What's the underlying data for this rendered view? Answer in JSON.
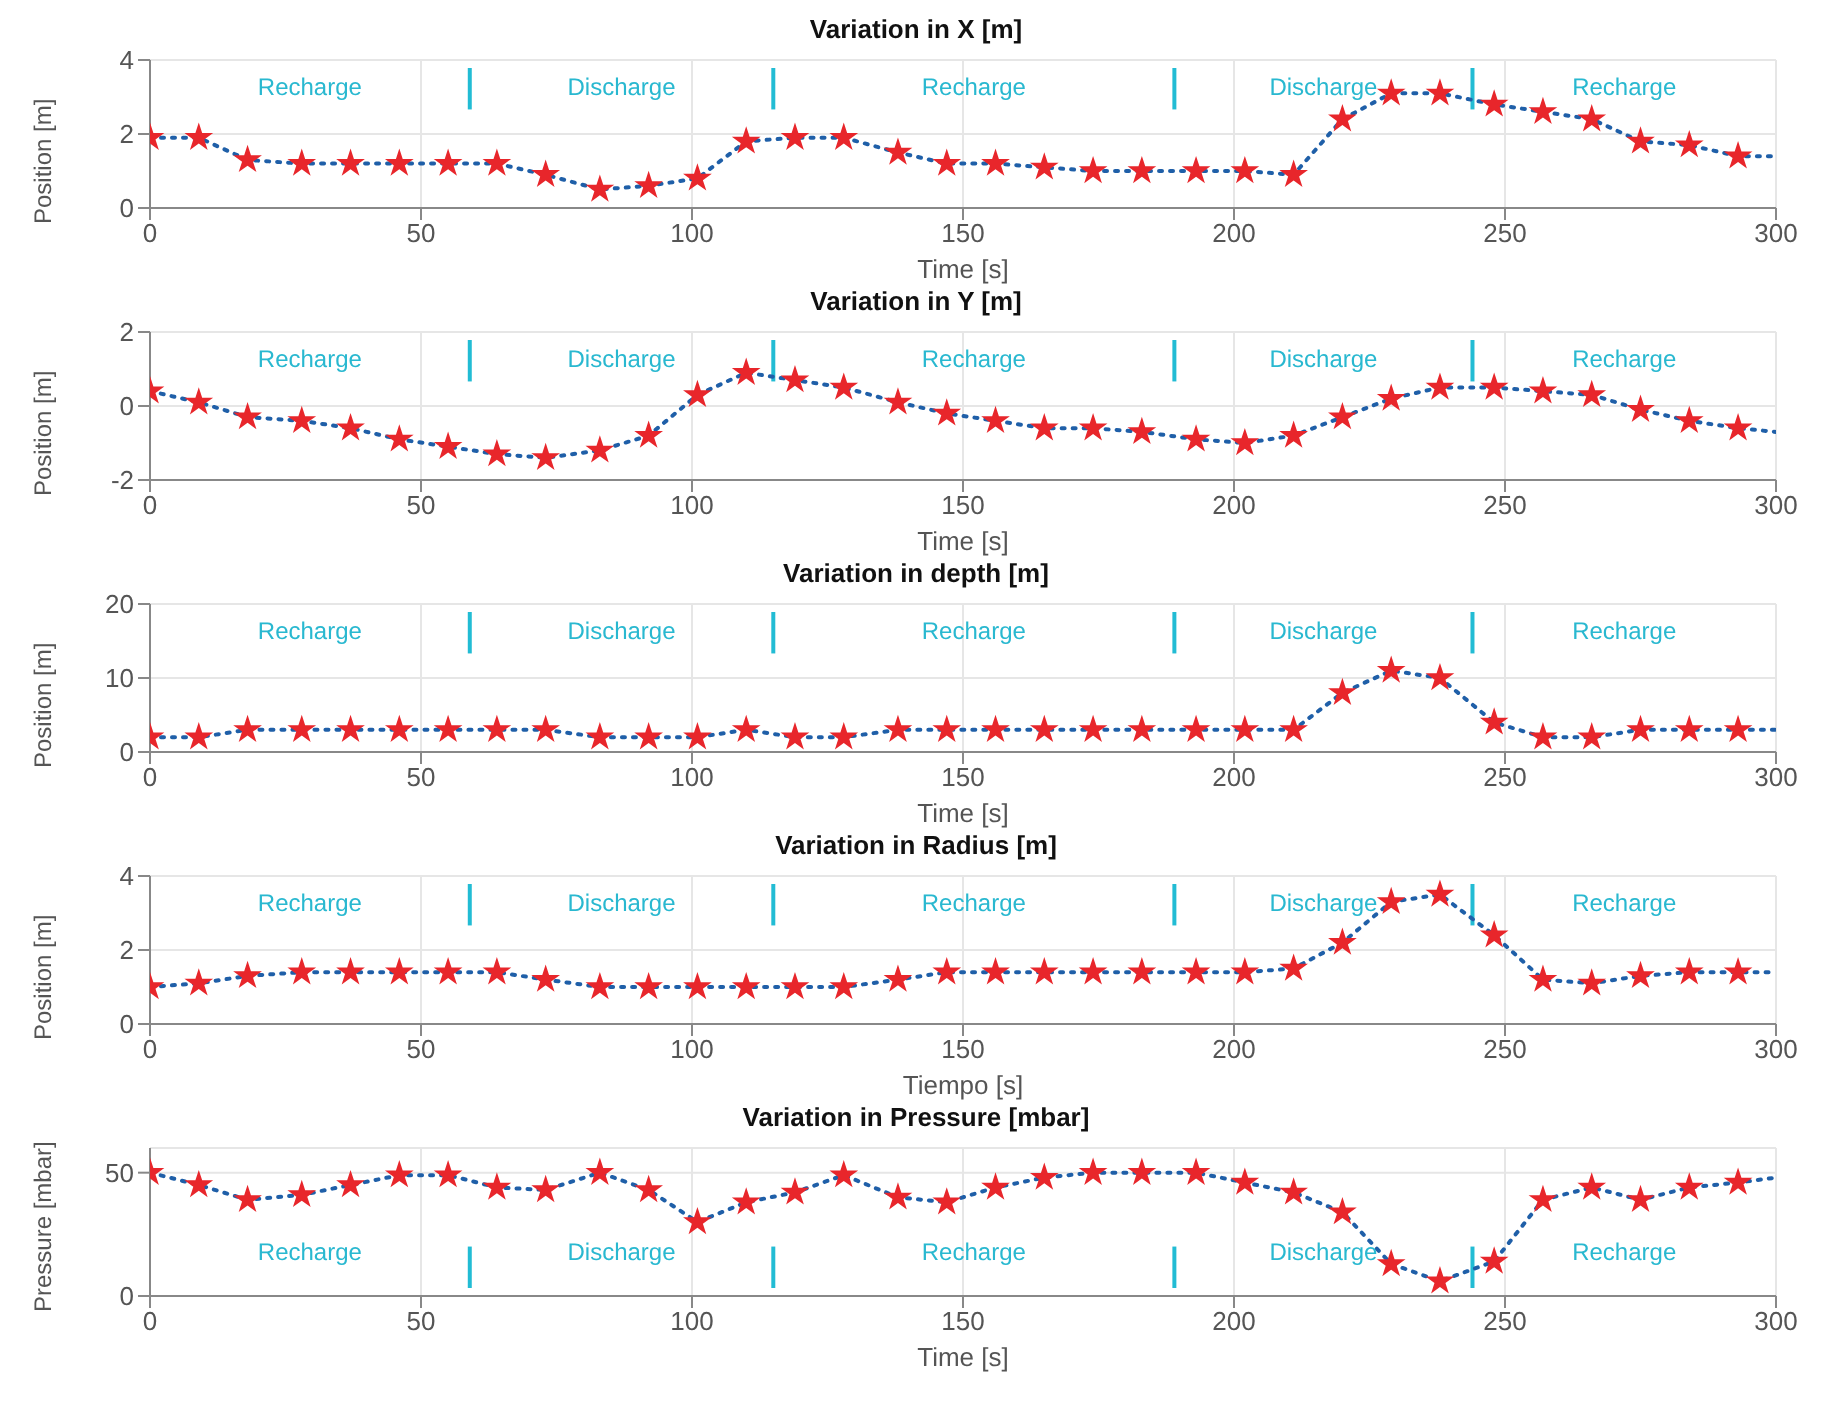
{
  "chart_data": [
    {
      "type": "line",
      "title": "Variation in X [m]",
      "xlabel": "Time [s]",
      "ylabel": "Position [m]",
      "xlim": [
        0,
        300
      ],
      "xticks": [
        0,
        50,
        100,
        150,
        200,
        250,
        300
      ],
      "ylim": [
        0,
        4
      ],
      "yticks": [
        0,
        2,
        4
      ],
      "grid": true,
      "series": [
        {
          "color": "#1f5fa8",
          "line_style": "dotted",
          "marker": "none",
          "x": [
            0,
            9,
            18,
            28,
            37,
            46,
            55,
            64,
            73,
            83,
            92,
            101,
            110,
            119,
            128,
            138,
            147,
            156,
            165,
            174,
            183,
            193,
            202,
            211,
            220,
            229,
            238,
            248,
            257,
            266,
            275,
            284,
            293,
            300
          ],
          "values": [
            1.9,
            1.9,
            1.3,
            1.2,
            1.2,
            1.2,
            1.2,
            1.2,
            0.9,
            0.5,
            0.6,
            0.8,
            1.8,
            1.9,
            1.9,
            1.5,
            1.2,
            1.2,
            1.1,
            1.0,
            1.0,
            1.0,
            1.0,
            0.9,
            2.4,
            3.1,
            3.1,
            2.8,
            2.6,
            2.4,
            1.8,
            1.7,
            1.4,
            1.4
          ]
        },
        {
          "type": "scatter",
          "color": "#e8262b",
          "marker": "star",
          "x": [
            0,
            9,
            18,
            28,
            37,
            46,
            55,
            64,
            73,
            83,
            92,
            101,
            110,
            119,
            128,
            138,
            147,
            156,
            165,
            174,
            183,
            193,
            202,
            211,
            220,
            229,
            238,
            248,
            257,
            266,
            275,
            284,
            293
          ],
          "values": [
            1.9,
            1.9,
            1.3,
            1.2,
            1.2,
            1.2,
            1.2,
            1.2,
            0.9,
            0.5,
            0.6,
            0.8,
            1.8,
            1.9,
            1.9,
            1.5,
            1.2,
            1.2,
            1.1,
            1.0,
            1.0,
            1.0,
            1.0,
            0.9,
            2.4,
            3.1,
            3.1,
            2.8,
            2.6,
            2.4,
            1.8,
            1.7,
            1.4
          ]
        }
      ],
      "ref_lines": [
        {
          "axis": "x",
          "value": 59,
          "color": "#22bcd4"
        },
        {
          "axis": "x",
          "value": 115,
          "color": "#22bcd4"
        },
        {
          "axis": "x",
          "value": 189,
          "color": "#22bcd4"
        },
        {
          "axis": "x",
          "value": 244,
          "color": "#22bcd4"
        }
      ],
      "annotations": [
        "Recharge",
        "Discharge",
        "Recharge",
        "Discharge",
        "Recharge"
      ]
    },
    {
      "type": "line",
      "title": "Variation in Y [m]",
      "xlabel": "Time [s]",
      "ylabel": "Position [m]",
      "xlim": [
        0,
        300
      ],
      "xticks": [
        0,
        50,
        100,
        150,
        200,
        250,
        300
      ],
      "ylim": [
        -2,
        2
      ],
      "yticks": [
        -2,
        0,
        2
      ],
      "grid": true,
      "series": [
        {
          "color": "#1f5fa8",
          "line_style": "dotted",
          "marker": "none",
          "x": [
            0,
            9,
            18,
            28,
            37,
            46,
            55,
            64,
            73,
            83,
            92,
            101,
            110,
            119,
            128,
            138,
            147,
            156,
            165,
            174,
            183,
            193,
            202,
            211,
            220,
            229,
            238,
            248,
            257,
            266,
            275,
            284,
            293,
            300
          ],
          "values": [
            0.4,
            0.1,
            -0.3,
            -0.4,
            -0.6,
            -0.9,
            -1.1,
            -1.3,
            -1.4,
            -1.2,
            -0.8,
            0.3,
            0.9,
            0.7,
            0.5,
            0.1,
            -0.2,
            -0.4,
            -0.6,
            -0.6,
            -0.7,
            -0.9,
            -1.0,
            -0.8,
            -0.3,
            0.2,
            0.5,
            0.5,
            0.4,
            0.3,
            -0.1,
            -0.4,
            -0.6,
            -0.7
          ]
        },
        {
          "type": "scatter",
          "color": "#e8262b",
          "marker": "star",
          "x": [
            0,
            9,
            18,
            28,
            37,
            46,
            55,
            64,
            73,
            83,
            92,
            101,
            110,
            119,
            128,
            138,
            147,
            156,
            165,
            174,
            183,
            193,
            202,
            211,
            220,
            229,
            238,
            248,
            257,
            266,
            275,
            284,
            293
          ],
          "values": [
            0.4,
            0.1,
            -0.3,
            -0.4,
            -0.6,
            -0.9,
            -1.1,
            -1.3,
            -1.4,
            -1.2,
            -0.8,
            0.3,
            0.9,
            0.7,
            0.5,
            0.1,
            -0.2,
            -0.4,
            -0.6,
            -0.6,
            -0.7,
            -0.9,
            -1.0,
            -0.8,
            -0.3,
            0.2,
            0.5,
            0.5,
            0.4,
            0.3,
            -0.1,
            -0.4,
            -0.6
          ]
        }
      ],
      "ref_lines": [
        {
          "axis": "x",
          "value": 59,
          "color": "#22bcd4"
        },
        {
          "axis": "x",
          "value": 115,
          "color": "#22bcd4"
        },
        {
          "axis": "x",
          "value": 189,
          "color": "#22bcd4"
        },
        {
          "axis": "x",
          "value": 244,
          "color": "#22bcd4"
        }
      ],
      "annotations": [
        "Recharge",
        "Discharge",
        "Recharge",
        "Discharge",
        "Recharge"
      ]
    },
    {
      "type": "line",
      "title": "Variation in depth [m]",
      "xlabel": "Time [s]",
      "ylabel": "Position [m]",
      "xlim": [
        0,
        300
      ],
      "xticks": [
        0,
        50,
        100,
        150,
        200,
        250,
        300
      ],
      "ylim": [
        0,
        20
      ],
      "yticks": [
        0,
        10,
        20
      ],
      "grid": true,
      "series": [
        {
          "color": "#1f5fa8",
          "line_style": "dotted",
          "marker": "none",
          "x": [
            0,
            9,
            18,
            28,
            37,
            46,
            55,
            64,
            73,
            83,
            92,
            101,
            110,
            119,
            128,
            138,
            147,
            156,
            165,
            174,
            183,
            193,
            202,
            211,
            220,
            229,
            238,
            248,
            257,
            266,
            275,
            284,
            293,
            300
          ],
          "values": [
            2,
            2,
            3,
            3,
            3,
            3,
            3,
            3,
            3,
            2,
            2,
            2,
            3,
            2,
            2,
            3,
            3,
            3,
            3,
            3,
            3,
            3,
            3,
            3,
            8,
            11,
            10,
            4,
            2,
            2,
            3,
            3,
            3,
            3
          ]
        },
        {
          "type": "scatter",
          "color": "#e8262b",
          "marker": "star",
          "x": [
            0,
            9,
            18,
            28,
            37,
            46,
            55,
            64,
            73,
            83,
            92,
            101,
            110,
            119,
            128,
            138,
            147,
            156,
            165,
            174,
            183,
            193,
            202,
            211,
            220,
            229,
            238,
            248,
            257,
            266,
            275,
            284,
            293
          ],
          "values": [
            2,
            2,
            3,
            3,
            3,
            3,
            3,
            3,
            3,
            2,
            2,
            2,
            3,
            2,
            2,
            3,
            3,
            3,
            3,
            3,
            3,
            3,
            3,
            3,
            8,
            11,
            10,
            4,
            2,
            2,
            3,
            3,
            3
          ]
        }
      ],
      "ref_lines": [
        {
          "axis": "x",
          "value": 59,
          "color": "#22bcd4"
        },
        {
          "axis": "x",
          "value": 115,
          "color": "#22bcd4"
        },
        {
          "axis": "x",
          "value": 189,
          "color": "#22bcd4"
        },
        {
          "axis": "x",
          "value": 244,
          "color": "#22bcd4"
        }
      ],
      "annotations": [
        "Recharge",
        "Discharge",
        "Recharge",
        "Discharge",
        "Recharge"
      ]
    },
    {
      "type": "line",
      "title": "Variation in Radius [m]",
      "xlabel": "Tiempo [s]",
      "ylabel": "Position [m]",
      "xlim": [
        0,
        300
      ],
      "xticks": [
        0,
        50,
        100,
        150,
        200,
        250,
        300
      ],
      "ylim": [
        0,
        4
      ],
      "yticks": [
        0,
        2,
        4
      ],
      "grid": true,
      "series": [
        {
          "color": "#1f5fa8",
          "line_style": "dotted",
          "marker": "none",
          "x": [
            0,
            9,
            18,
            28,
            37,
            46,
            55,
            64,
            73,
            83,
            92,
            101,
            110,
            119,
            128,
            138,
            147,
            156,
            165,
            174,
            183,
            193,
            202,
            211,
            220,
            229,
            238,
            248,
            257,
            266,
            275,
            284,
            293,
            300
          ],
          "values": [
            1.0,
            1.1,
            1.3,
            1.4,
            1.4,
            1.4,
            1.4,
            1.4,
            1.2,
            1.0,
            1.0,
            1.0,
            1.0,
            1.0,
            1.0,
            1.2,
            1.4,
            1.4,
            1.4,
            1.4,
            1.4,
            1.4,
            1.4,
            1.5,
            2.2,
            3.3,
            3.5,
            2.4,
            1.2,
            1.1,
            1.3,
            1.4,
            1.4,
            1.4
          ]
        },
        {
          "type": "scatter",
          "color": "#e8262b",
          "marker": "star",
          "x": [
            0,
            9,
            18,
            28,
            37,
            46,
            55,
            64,
            73,
            83,
            92,
            101,
            110,
            119,
            128,
            138,
            147,
            156,
            165,
            174,
            183,
            193,
            202,
            211,
            220,
            229,
            238,
            248,
            257,
            266,
            275,
            284,
            293
          ],
          "values": [
            1.0,
            1.1,
            1.3,
            1.4,
            1.4,
            1.4,
            1.4,
            1.4,
            1.2,
            1.0,
            1.0,
            1.0,
            1.0,
            1.0,
            1.0,
            1.2,
            1.4,
            1.4,
            1.4,
            1.4,
            1.4,
            1.4,
            1.4,
            1.5,
            2.2,
            3.3,
            3.5,
            2.4,
            1.2,
            1.1,
            1.3,
            1.4,
            1.4
          ]
        }
      ],
      "ref_lines": [
        {
          "axis": "x",
          "value": 59,
          "color": "#22bcd4"
        },
        {
          "axis": "x",
          "value": 115,
          "color": "#22bcd4"
        },
        {
          "axis": "x",
          "value": 189,
          "color": "#22bcd4"
        },
        {
          "axis": "x",
          "value": 244,
          "color": "#22bcd4"
        }
      ],
      "annotations": [
        "Recharge",
        "Discharge",
        "Recharge",
        "Discharge",
        "Recharge"
      ]
    },
    {
      "type": "line",
      "title": "Variation in Pressure [mbar]",
      "xlabel": "Time [s]",
      "ylabel": "Pressure [mbar]",
      "xlim": [
        0,
        300
      ],
      "xticks": [
        0,
        50,
        100,
        150,
        200,
        250,
        300
      ],
      "ylim": [
        0,
        60
      ],
      "yticks": [
        0,
        50
      ],
      "grid": true,
      "series": [
        {
          "color": "#1f5fa8",
          "line_style": "dotted",
          "marker": "none",
          "x": [
            0,
            9,
            18,
            28,
            37,
            46,
            55,
            64,
            73,
            83,
            92,
            101,
            110,
            119,
            128,
            138,
            147,
            156,
            165,
            174,
            183,
            193,
            202,
            211,
            220,
            229,
            238,
            248,
            257,
            266,
            275,
            284,
            293,
            300
          ],
          "values": [
            50,
            45,
            39,
            41,
            45,
            49,
            49,
            44,
            43,
            50,
            43,
            30,
            38,
            42,
            49,
            40,
            38,
            44,
            48,
            50,
            50,
            50,
            46,
            42,
            34,
            13,
            6,
            14,
            39,
            44,
            39,
            44,
            46,
            48
          ]
        },
        {
          "type": "scatter",
          "color": "#e8262b",
          "marker": "star",
          "x": [
            0,
            9,
            18,
            28,
            37,
            46,
            55,
            64,
            73,
            83,
            92,
            101,
            110,
            119,
            128,
            138,
            147,
            156,
            165,
            174,
            183,
            193,
            202,
            211,
            220,
            229,
            238,
            248,
            257,
            266,
            275,
            284,
            293
          ],
          "values": [
            50,
            45,
            39,
            41,
            45,
            49,
            49,
            44,
            43,
            50,
            43,
            30,
            38,
            42,
            49,
            40,
            38,
            44,
            48,
            50,
            50,
            50,
            46,
            42,
            34,
            13,
            6,
            14,
            39,
            44,
            39,
            44,
            46
          ]
        }
      ],
      "ref_lines": [
        {
          "axis": "x",
          "value": 59,
          "color": "#22bcd4"
        },
        {
          "axis": "x",
          "value": 115,
          "color": "#22bcd4"
        },
        {
          "axis": "x",
          "value": 189,
          "color": "#22bcd4"
        },
        {
          "axis": "x",
          "value": 244,
          "color": "#22bcd4"
        }
      ],
      "annotations": [
        "Recharge",
        "Discharge",
        "Recharge",
        "Discharge",
        "Recharge"
      ]
    }
  ]
}
